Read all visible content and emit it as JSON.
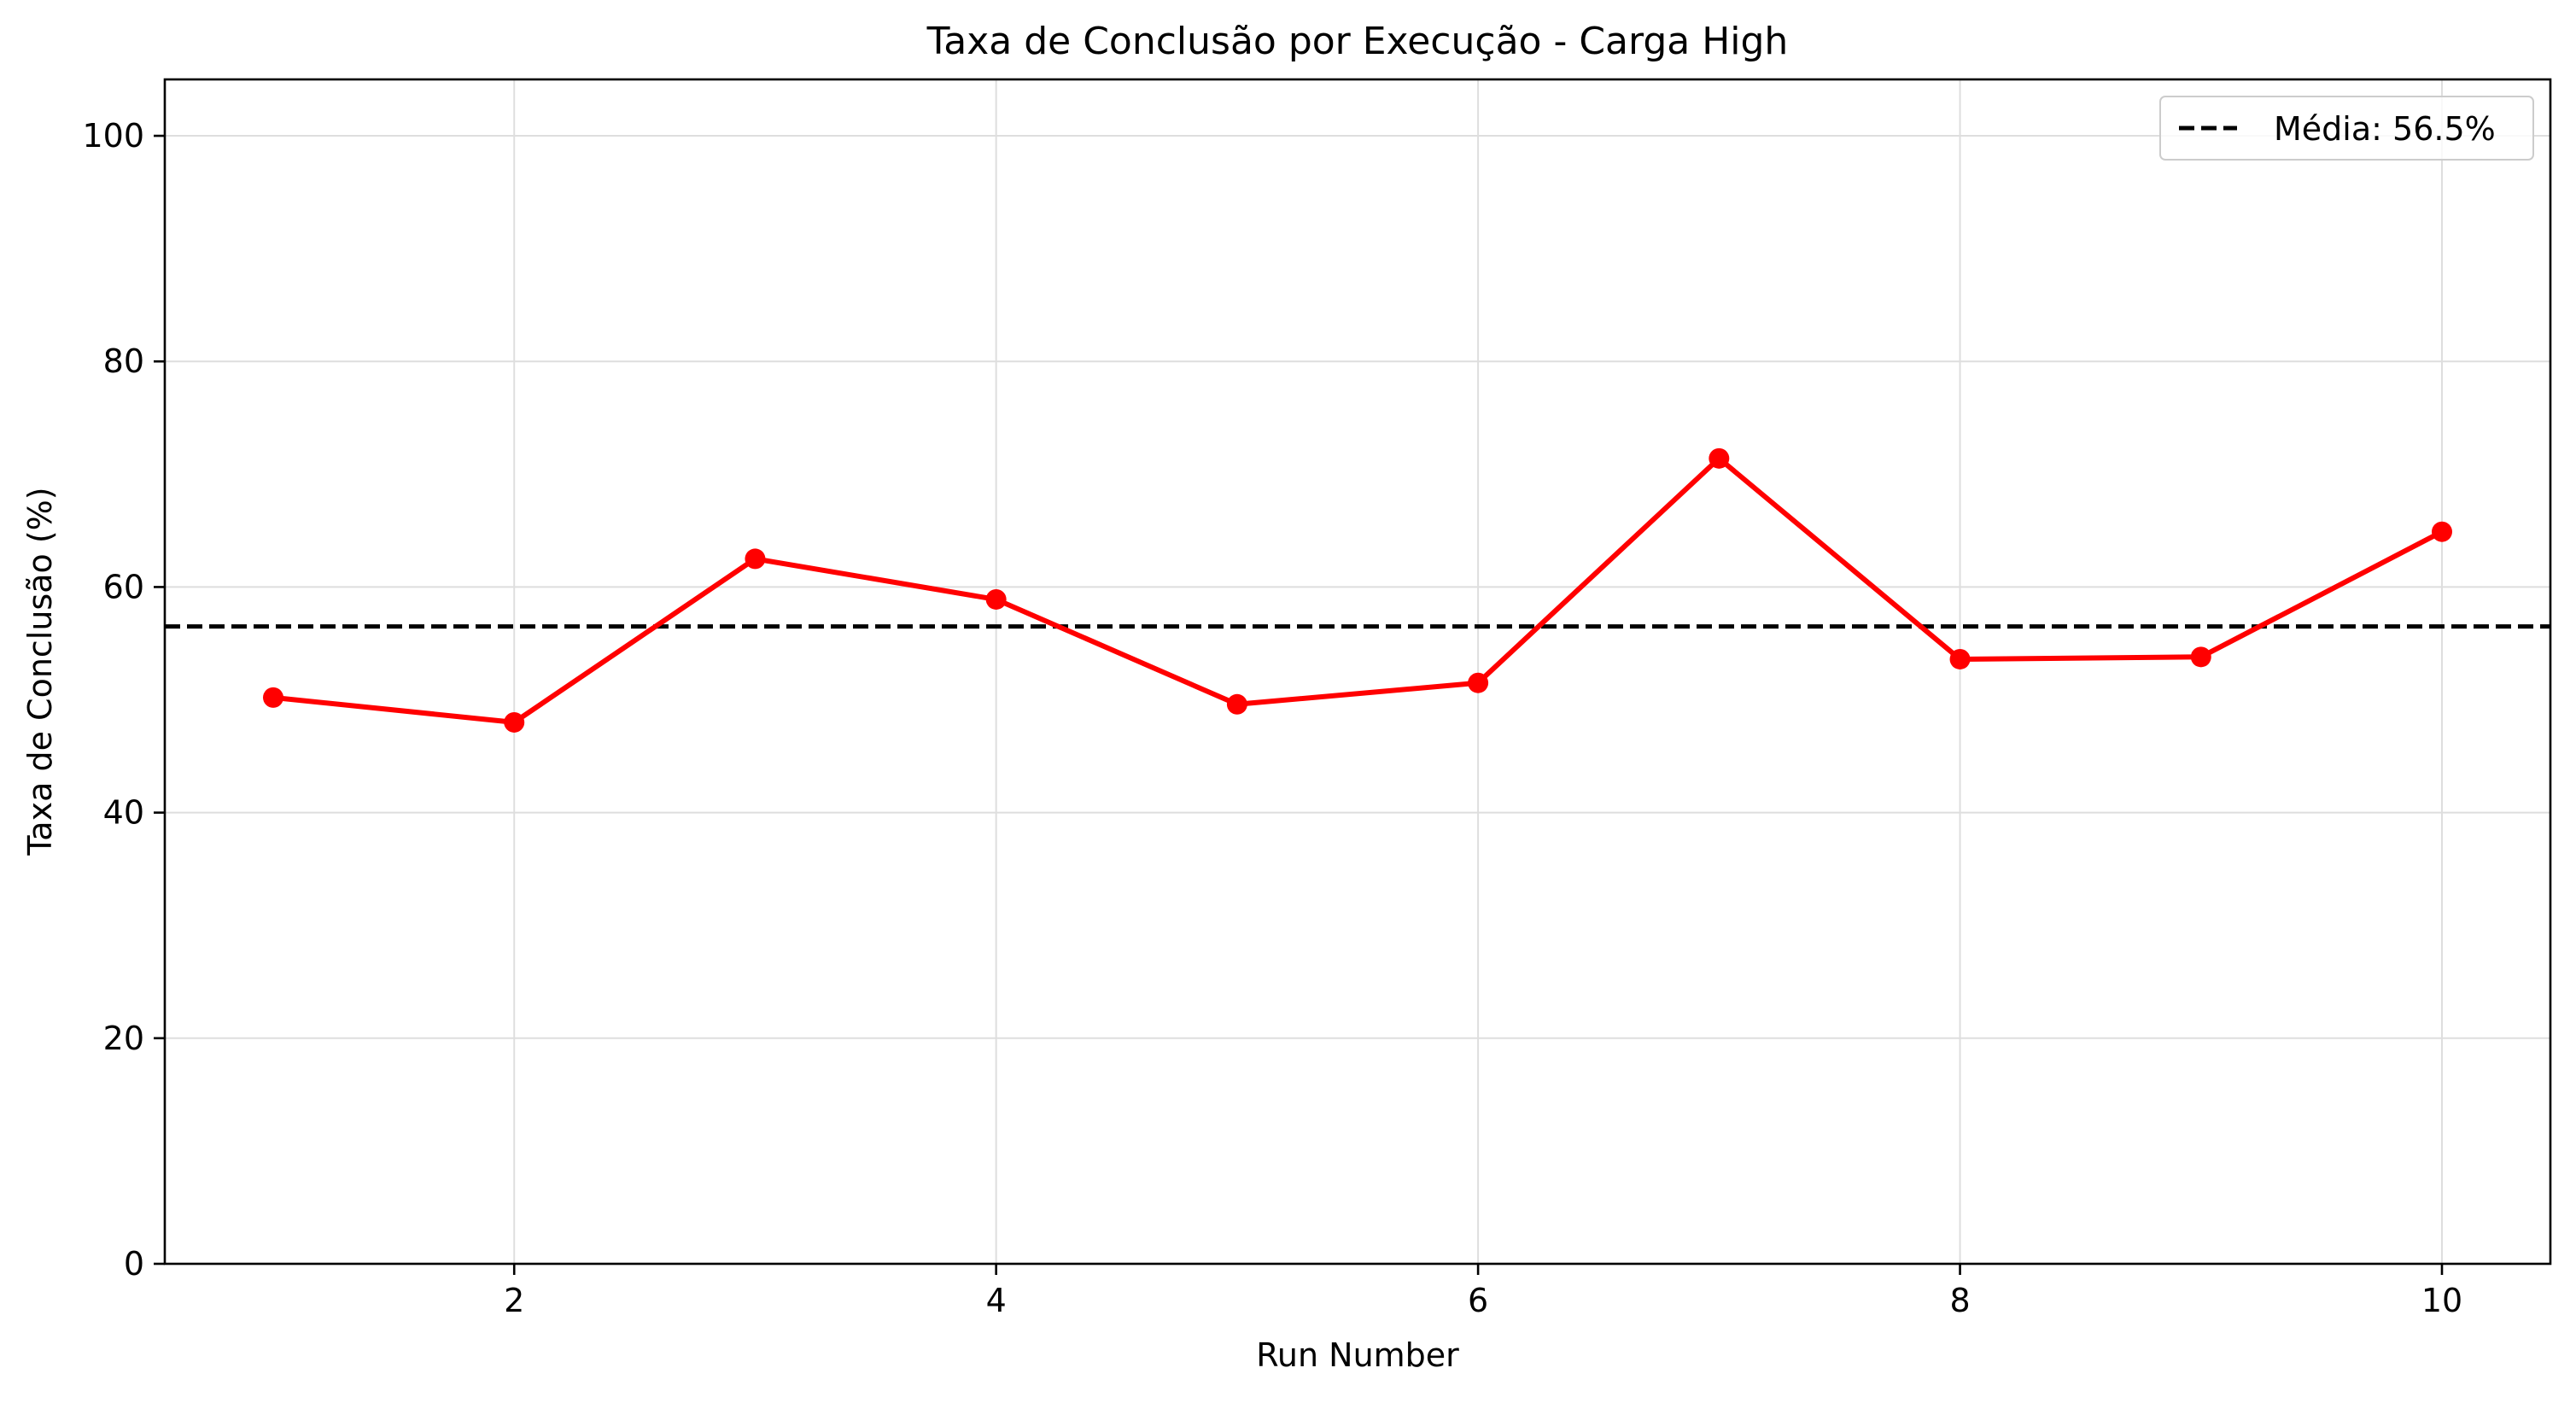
{
  "chart_data": {
    "type": "line",
    "title": "Taxa de Conclusão por Execução - Carga High",
    "xlabel": "Run Number",
    "ylabel": "Taxa de Conclusão (%)",
    "xlim": [
      0.55,
      10.45
    ],
    "ylim": [
      0,
      105
    ],
    "x_ticks": [
      2,
      4,
      6,
      8,
      10
    ],
    "y_ticks": [
      0,
      20,
      40,
      60,
      80,
      100
    ],
    "grid": true,
    "legend_position": "top-right",
    "series": [
      {
        "x": [
          1,
          2,
          3,
          4,
          5,
          6,
          7,
          8,
          9,
          10
        ],
        "values": [
          50.2,
          48.0,
          62.5,
          58.9,
          49.6,
          51.5,
          71.4,
          53.6,
          53.8,
          64.9
        ],
        "color": "#ff0000",
        "marker": "circle"
      }
    ],
    "reference_lines": [
      {
        "label": "Média: 56.5%",
        "value": 56.5,
        "color": "#000000",
        "style": "dashed"
      }
    ]
  }
}
